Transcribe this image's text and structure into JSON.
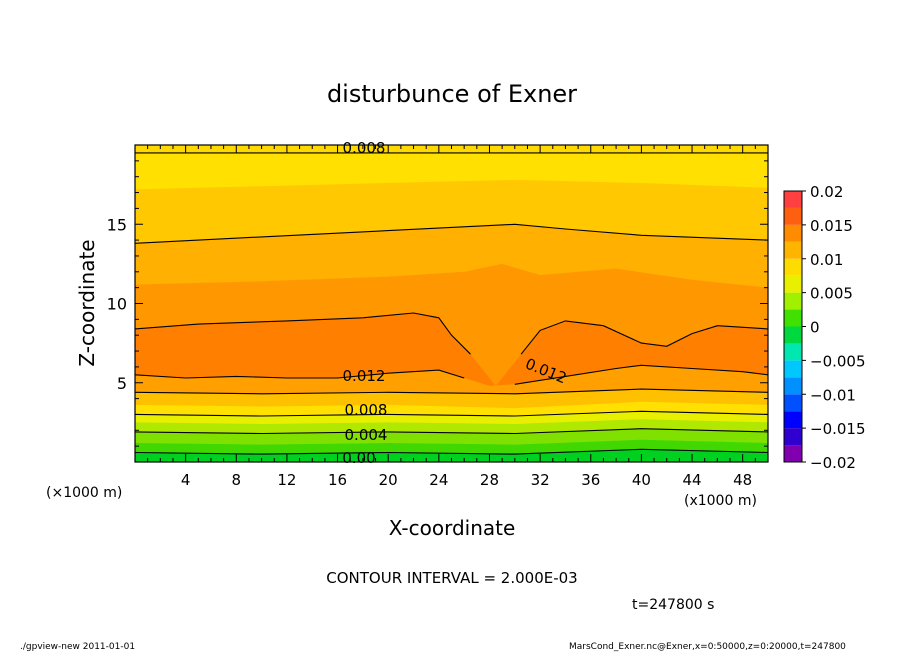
{
  "chart_data": {
    "type": "filled-contour",
    "title": "disturbunce of Exner",
    "xlabel": "X-coordinate",
    "ylabel": "Z-coordinate",
    "x_unit": "(×1000 m)",
    "x_unit_right": "(x1000 m)",
    "xlim": [
      0,
      50
    ],
    "ylim": [
      0,
      20
    ],
    "x_ticks": [
      "4",
      "8",
      "12",
      "16",
      "20",
      "24",
      "28",
      "32",
      "36",
      "40",
      "44",
      "48"
    ],
    "y_ticks": [
      "5",
      "10",
      "15"
    ],
    "contour_labels": [
      "0.008",
      "0.012",
      "0.012",
      "0.008",
      "0.004",
      "0.00"
    ],
    "contour_interval_text": "CONTOUR INTERVAL = 2.000E-03",
    "time_text": "t=247800 s",
    "colorbar": {
      "levels": [
        -0.02,
        -0.0175,
        -0.015,
        -0.0125,
        -0.01,
        -0.0075,
        -0.005,
        -0.0025,
        0,
        0.0025,
        0.005,
        0.0075,
        0.01,
        0.0125,
        0.015,
        0.0175,
        0.02
      ],
      "colors": [
        "#8000b0",
        "#3000d0",
        "#0000ff",
        "#0050ff",
        "#0090ff",
        "#00c8ff",
        "#00e8b0",
        "#00d840",
        "#40e000",
        "#a0f000",
        "#e8f000",
        "#ffdc00",
        "#ffb400",
        "#ff8c00",
        "#ff6010",
        "#ff4040",
        "#ff8090"
      ],
      "tick_labels": [
        "0.02",
        "0.015",
        "0.01",
        "0.005",
        "0",
        "−0.005",
        "−0.01",
        "−0.015",
        "−0.02"
      ]
    },
    "layers": [
      {
        "upper": [
          [
            0,
            19.5
          ],
          [
            50,
            19.5
          ]
        ],
        "color": "#ffe000"
      },
      {
        "upper": [
          [
            0,
            17.2
          ],
          [
            10,
            17.4
          ],
          [
            20,
            17.6
          ],
          [
            30,
            17.8
          ],
          [
            40,
            17.6
          ],
          [
            50,
            17.3
          ]
        ],
        "color": "#ffc800"
      },
      {
        "upper": [
          [
            0,
            13.8
          ],
          [
            10,
            14.2
          ],
          [
            20,
            14.6
          ],
          [
            30,
            15
          ],
          [
            34,
            14.7
          ],
          [
            40,
            14.3
          ],
          [
            50,
            14
          ]
        ],
        "color": "#ffb000"
      },
      {
        "upper": [
          [
            0,
            11.2
          ],
          [
            10,
            11.4
          ],
          [
            20,
            11.7
          ],
          [
            26,
            12
          ],
          [
            29,
            12.5
          ],
          [
            32,
            11.8
          ],
          [
            38,
            12.2
          ],
          [
            44,
            11.5
          ],
          [
            50,
            11
          ]
        ],
        "color": "#ff9800"
      },
      {
        "upper": [
          [
            0,
            8.4
          ],
          [
            5,
            8.7
          ],
          [
            12,
            8.9
          ],
          [
            18,
            9.1
          ],
          [
            22,
            9.4
          ],
          [
            24,
            9.1
          ],
          [
            25,
            8
          ],
          [
            26.5,
            6.8
          ],
          [
            28.5,
            4.8
          ],
          [
            30.5,
            6.8
          ],
          [
            32,
            8.3
          ],
          [
            34,
            8.9
          ],
          [
            37,
            8.6
          ],
          [
            40,
            7.5
          ],
          [
            42,
            7.3
          ],
          [
            44,
            8.1
          ],
          [
            46,
            8.6
          ],
          [
            50,
            8.4
          ]
        ],
        "color": "#ff8000"
      },
      {
        "upper": [
          [
            0,
            5.5
          ],
          [
            4,
            5.3
          ],
          [
            8,
            5.4
          ],
          [
            12,
            5.3
          ],
          [
            16,
            5.3
          ],
          [
            20,
            5.6
          ],
          [
            24,
            5.8
          ],
          [
            26,
            5.3
          ],
          [
            28,
            4.8
          ],
          [
            30,
            4.9
          ],
          [
            34,
            5.4
          ],
          [
            38,
            5.9
          ],
          [
            40,
            6.1
          ],
          [
            44,
            5.9
          ],
          [
            48,
            5.7
          ],
          [
            50,
            5.5
          ]
        ],
        "color": "#ffa000"
      },
      {
        "upper": [
          [
            0,
            4.4
          ],
          [
            10,
            4.3
          ],
          [
            20,
            4.4
          ],
          [
            30,
            4.3
          ],
          [
            40,
            4.6
          ],
          [
            50,
            4.4
          ]
        ],
        "color": "#ffc000"
      },
      {
        "upper": [
          [
            0,
            3.6
          ],
          [
            10,
            3.5
          ],
          [
            20,
            3.6
          ],
          [
            30,
            3.4
          ],
          [
            40,
            3.8
          ],
          [
            50,
            3.6
          ]
        ],
        "color": "#ffe000"
      },
      {
        "upper": [
          [
            0,
            3.0
          ],
          [
            10,
            2.9
          ],
          [
            20,
            3.0
          ],
          [
            30,
            2.9
          ],
          [
            40,
            3.2
          ],
          [
            50,
            3.0
          ]
        ],
        "color": "#e8f000"
      },
      {
        "upper": [
          [
            0,
            2.5
          ],
          [
            10,
            2.4
          ],
          [
            20,
            2.5
          ],
          [
            30,
            2.4
          ],
          [
            40,
            2.7
          ],
          [
            50,
            2.5
          ]
        ],
        "color": "#b0e800"
      },
      {
        "upper": [
          [
            0,
            1.9
          ],
          [
            10,
            1.8
          ],
          [
            20,
            1.9
          ],
          [
            30,
            1.8
          ],
          [
            40,
            2.1
          ],
          [
            50,
            1.9
          ]
        ],
        "color": "#80e000"
      },
      {
        "upper": [
          [
            0,
            1.2
          ],
          [
            10,
            1.1
          ],
          [
            20,
            1.2
          ],
          [
            30,
            1.1
          ],
          [
            40,
            1.4
          ],
          [
            50,
            1.2
          ]
        ],
        "color": "#40d800"
      },
      {
        "upper": [
          [
            0,
            0.6
          ],
          [
            10,
            0.5
          ],
          [
            20,
            0.6
          ],
          [
            30,
            0.5
          ],
          [
            40,
            0.8
          ],
          [
            50,
            0.6
          ]
        ],
        "color": "#00d020"
      }
    ],
    "contour_lines": [
      [
        [
          0,
          19.5
        ],
        [
          50,
          19.5
        ]
      ],
      [
        [
          0,
          13.8
        ],
        [
          10,
          14.2
        ],
        [
          20,
          14.6
        ],
        [
          30,
          15
        ],
        [
          34,
          14.7
        ],
        [
          40,
          14.3
        ],
        [
          50,
          14
        ]
      ],
      [
        [
          0,
          8.4
        ],
        [
          5,
          8.7
        ],
        [
          12,
          8.9
        ],
        [
          18,
          9.1
        ],
        [
          22,
          9.4
        ],
        [
          24,
          9.1
        ],
        [
          25,
          8
        ],
        [
          26.5,
          6.8
        ]
      ],
      [
        [
          30.5,
          6.8
        ],
        [
          32,
          8.3
        ],
        [
          34,
          8.9
        ],
        [
          37,
          8.6
        ],
        [
          40,
          7.5
        ],
        [
          42,
          7.3
        ],
        [
          44,
          8.1
        ],
        [
          46,
          8.6
        ],
        [
          50,
          8.4
        ]
      ],
      [
        [
          0,
          5.5
        ],
        [
          4,
          5.3
        ],
        [
          8,
          5.4
        ],
        [
          12,
          5.3
        ],
        [
          16,
          5.3
        ],
        [
          20,
          5.6
        ],
        [
          24,
          5.8
        ],
        [
          26,
          5.3
        ]
      ],
      [
        [
          30,
          4.9
        ],
        [
          34,
          5.4
        ],
        [
          38,
          5.9
        ],
        [
          40,
          6.1
        ],
        [
          44,
          5.9
        ],
        [
          48,
          5.7
        ],
        [
          50,
          5.5
        ]
      ],
      [
        [
          0,
          4.4
        ],
        [
          10,
          4.3
        ],
        [
          20,
          4.4
        ],
        [
          30,
          4.3
        ],
        [
          40,
          4.6
        ],
        [
          50,
          4.4
        ]
      ],
      [
        [
          0,
          3.0
        ],
        [
          10,
          2.9
        ],
        [
          20,
          3.0
        ],
        [
          30,
          2.9
        ],
        [
          40,
          3.2
        ],
        [
          50,
          3.0
        ]
      ],
      [
        [
          0,
          1.9
        ],
        [
          10,
          1.8
        ],
        [
          20,
          1.9
        ],
        [
          30,
          1.8
        ],
        [
          40,
          2.1
        ],
        [
          50,
          1.9
        ]
      ],
      [
        [
          0,
          0.6
        ],
        [
          10,
          0.5
        ],
        [
          20,
          0.6
        ],
        [
          30,
          0.5
        ],
        [
          40,
          0.8
        ],
        [
          50,
          0.6
        ]
      ]
    ]
  },
  "footer": {
    "left": "./gpview-new   2011-01-01",
    "right": "MarsCond_Exner.nc@Exner,x=0:50000,z=0:20000,t=247800"
  }
}
